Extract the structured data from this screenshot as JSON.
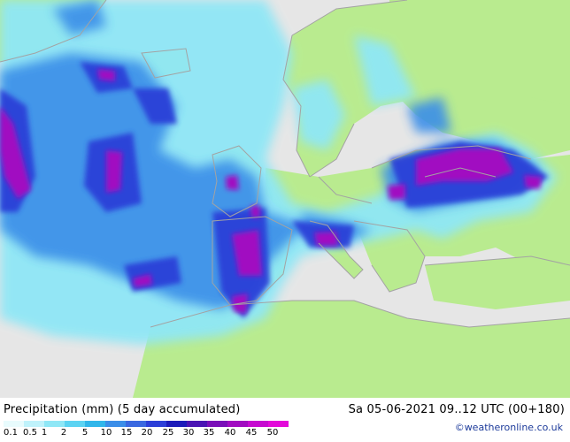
{
  "legend": {
    "title": "Precipitation (mm) (5 day accumulated)",
    "run_info": "Sa 05-06-2021 09..12 UTC (00+180)",
    "credit": "©weatheronline.co.uk",
    "ticks": [
      "0.1",
      "0.5",
      "1",
      "2",
      "5",
      "10",
      "15",
      "20",
      "25",
      "30",
      "35",
      "40",
      "45",
      "50"
    ],
    "colors": [
      "#e8fbfd",
      "#bff2fb",
      "#8fe7f6",
      "#5cd3f2",
      "#31b6ea",
      "#3b8ee8",
      "#3a68e0",
      "#2c3fd8",
      "#1c1bb9",
      "#4a14b3",
      "#7a0fb8",
      "#a10cc1",
      "#c60ad0",
      "#e30ad9"
    ]
  },
  "map": {
    "land_color": "#b9eb8f",
    "sea_color": "#e8e8e8",
    "border_color": "#a3a3a3"
  }
}
